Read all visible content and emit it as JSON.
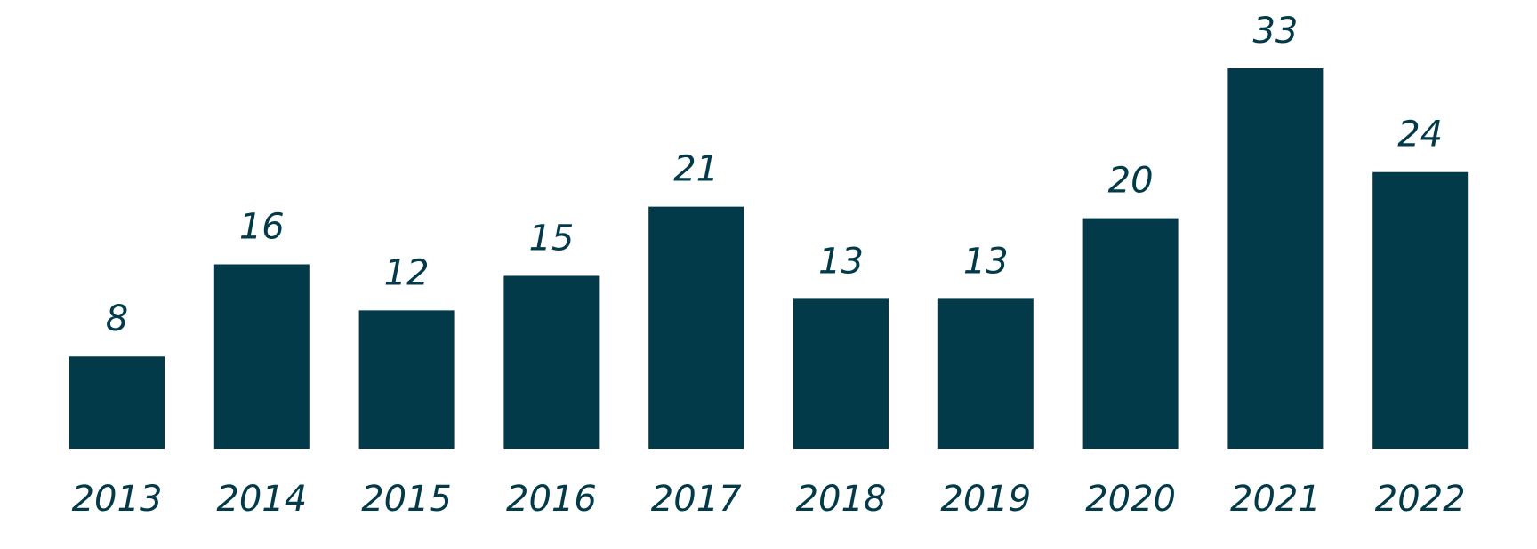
{
  "chart_data": {
    "type": "bar",
    "categories": [
      "2013",
      "2014",
      "2015",
      "2016",
      "2017",
      "2018",
      "2019",
      "2020",
      "2021",
      "2022"
    ],
    "values": [
      8,
      16,
      12,
      15,
      21,
      13,
      13,
      20,
      33,
      24
    ],
    "color": "#023a4a"
  }
}
